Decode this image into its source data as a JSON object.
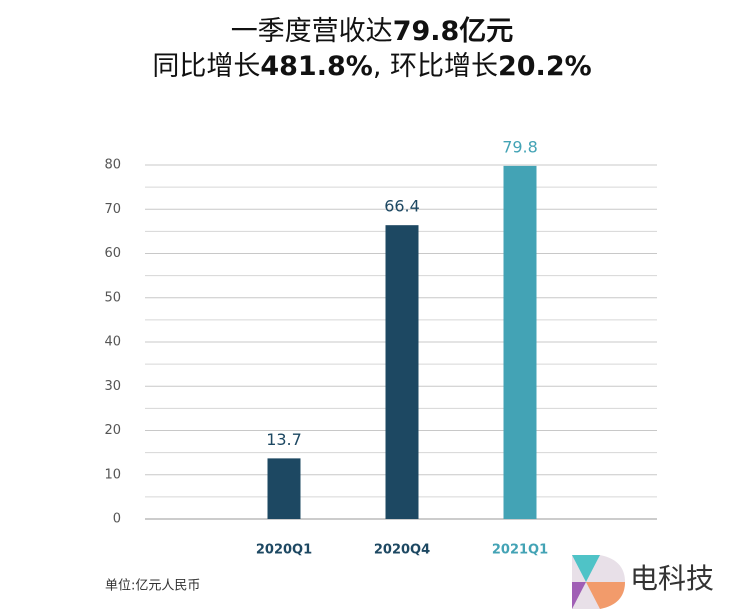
{
  "chart_data": {
    "type": "bar",
    "title": [
      [
        {
          "text": "一季度营收达",
          "bold": false
        },
        {
          "text": "79.8亿元",
          "bold": true
        }
      ],
      [
        {
          "text": "同比增长",
          "bold": false
        },
        {
          "text": "481.8%",
          "bold": true
        },
        {
          "text": ", 环比增长",
          "bold": false
        },
        {
          "text": "20.2%",
          "bold": true
        }
      ]
    ],
    "categories": [
      "2020Q1",
      "2020Q4",
      "2021Q1"
    ],
    "values": [
      13.7,
      66.4,
      79.8
    ],
    "colors": [
      "#1d4862",
      "#1d4862",
      "#43a3b5"
    ],
    "ylim": [
      0,
      80
    ],
    "yticks": [
      0,
      10,
      20,
      30,
      40,
      50,
      60,
      70,
      80
    ],
    "minor_yticks": [
      5,
      15,
      25,
      35,
      45,
      55,
      65,
      75
    ],
    "grid": true,
    "note": "单位:亿元人民币",
    "watermark": "电科技"
  }
}
